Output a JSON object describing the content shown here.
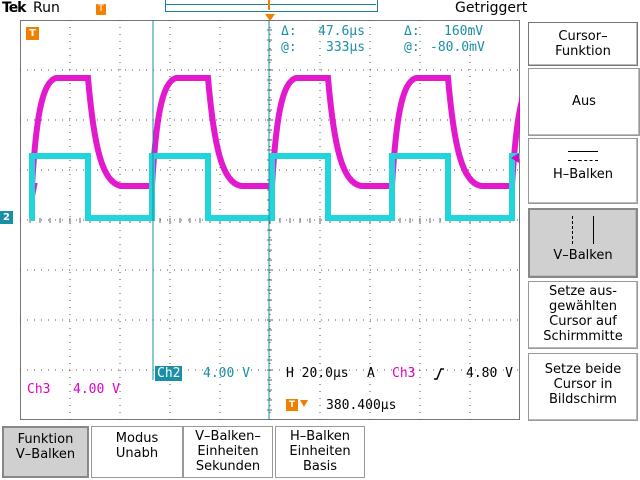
{
  "header": {
    "brand": "Tek",
    "status": "Run",
    "trigger_state": "Getriggert",
    "trigger_position_icon": "T"
  },
  "cursor_readout": {
    "delta_time_label": "Δ:",
    "delta_time": "47.6µs",
    "delta_volt_label": "Δ:",
    "delta_volt": "160mV",
    "at_time_label": "@:",
    "at_time": "333µs",
    "at_volt_label": "@:",
    "at_volt": "-80.0mV"
  },
  "channel_markers": {
    "ch2": "2",
    "trigger": "T"
  },
  "status_bar": {
    "ch2_label": "Ch2",
    "ch2_scale": "4.00 V",
    "timebase": "H 20.0µs",
    "acq_mode": "A",
    "trig_source": "Ch3",
    "trig_level": "4.80 V",
    "ch3_label": "Ch3",
    "ch3_scale": "4.00 V",
    "trig_offset_icon": "T",
    "trig_offset": "380.400µs"
  },
  "side_menu": {
    "title": "Cursor–\nFunktion",
    "off": "Aus",
    "h_bars": "H–Balken",
    "v_bars": "V–Balken",
    "center_selected": "Setze aus-\ngewählten\nCursor auf\nSchirmmitte",
    "both_on_screen": "Setze beide\nCursor in\nBildschirm"
  },
  "bottom_menu": {
    "function": "Funktion\nV–Balken",
    "mode": "Modus\nUnabh",
    "vbar_units": "V–Balken–\nEinheiten\nSekunden",
    "hbar_units": "H–Balken\nEinheiten\nBasis"
  },
  "colors": {
    "ch2": "#22d5dc",
    "ch3": "#e000c8",
    "cursor": "#1a8fa6",
    "trigger": "#f08000"
  }
}
